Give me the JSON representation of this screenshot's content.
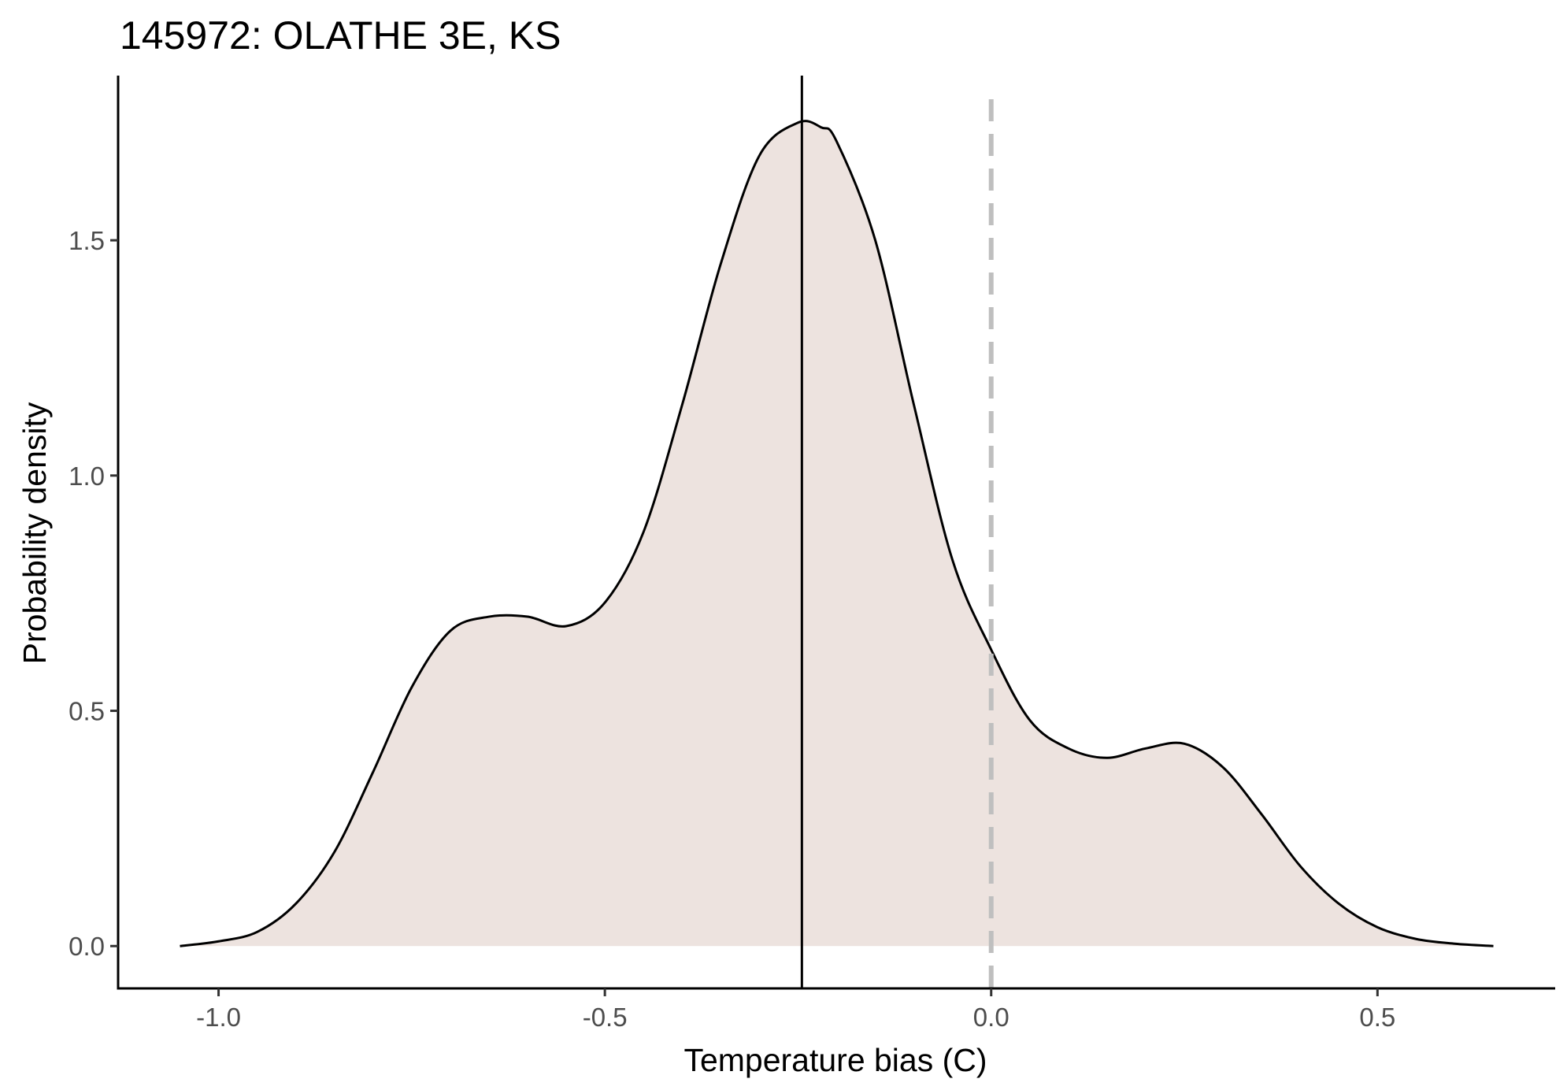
{
  "chart_data": {
    "type": "area",
    "title": "145972: OLATHE 3E, KS",
    "xlabel": "Temperature bias (C)",
    "ylabel": "Probability density",
    "xlim": [
      -1.13,
      0.73
    ],
    "ylim": [
      -0.09,
      1.85
    ],
    "x_ticks": [
      -1.0,
      -0.5,
      0.0,
      0.5
    ],
    "x_tick_labels": [
      "-1.0",
      "-0.5",
      "0.0",
      "0.5"
    ],
    "y_ticks": [
      0.0,
      0.5,
      1.0,
      1.5
    ],
    "y_tick_labels": [
      "0.0",
      "0.5",
      "1.0",
      "1.5"
    ],
    "grid": false,
    "density_curve": {
      "x": [
        -1.05,
        -1.0,
        -0.95,
        -0.9,
        -0.85,
        -0.8,
        -0.75,
        -0.7,
        -0.65,
        -0.6,
        -0.55,
        -0.5,
        -0.45,
        -0.4,
        -0.35,
        -0.3,
        -0.25,
        -0.22,
        -0.2,
        -0.15,
        -0.1,
        -0.05,
        0.0,
        0.05,
        0.1,
        0.15,
        0.2,
        0.25,
        0.3,
        0.35,
        0.4,
        0.45,
        0.5,
        0.55,
        0.6,
        0.65
      ],
      "y": [
        0.0,
        0.01,
        0.03,
        0.09,
        0.2,
        0.37,
        0.55,
        0.67,
        0.7,
        0.7,
        0.68,
        0.73,
        0.88,
        1.15,
        1.45,
        1.68,
        1.75,
        1.74,
        1.71,
        1.5,
        1.15,
        0.82,
        0.63,
        0.48,
        0.42,
        0.4,
        0.42,
        0.43,
        0.38,
        0.28,
        0.17,
        0.09,
        0.04,
        0.015,
        0.005,
        0.0
      ],
      "fill": "#ede3df",
      "line": "#000000"
    },
    "reference_lines": [
      {
        "x": -0.245,
        "style": "solid",
        "color": "#000000"
      },
      {
        "x": 0.0,
        "style": "dashed",
        "color": "#bfbfbf"
      }
    ]
  }
}
